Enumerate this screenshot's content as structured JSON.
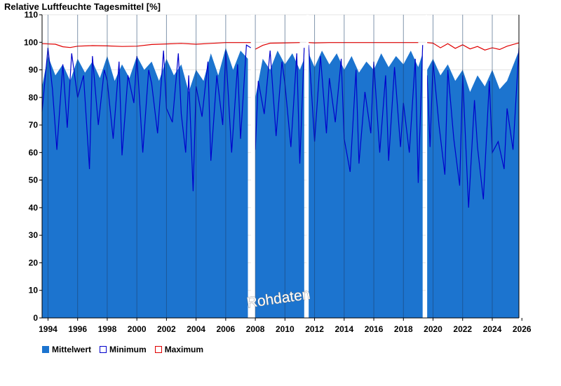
{
  "chart_data": {
    "type": "area",
    "title": "Relative Luftfeuchte Tagesmittel [%]",
    "ylim": [
      0,
      110
    ],
    "yticks": [
      0,
      10,
      20,
      30,
      40,
      50,
      60,
      70,
      80,
      90,
      100,
      110
    ],
    "xlim": [
      1993.6,
      2025.8
    ],
    "xticks": [
      1994,
      1996,
      1998,
      2000,
      2002,
      2004,
      2006,
      2008,
      2010,
      2012,
      2014,
      2016,
      2018,
      2020,
      2022,
      2024,
      2026
    ],
    "xtick_labels": [
      "1994",
      "1996",
      "1998",
      "2000",
      "2002",
      "2004",
      "2006",
      "2008",
      "2010",
      "2012",
      "2014",
      "2016",
      "2018",
      "2020",
      "2022",
      "2024",
      "2026"
    ],
    "gaps": [
      [
        2007.7,
        2008.0
      ],
      [
        2011.45,
        2011.6
      ],
      [
        2019.5,
        2019.6
      ]
    ],
    "annotation": "Rohdaten",
    "grid": true,
    "legend_placement": "bottom-left",
    "series": [
      {
        "name": "Mittelwert",
        "color": "#1c74cf",
        "x": [
          1993.6,
          1994.0,
          1994.5,
          1995.0,
          1995.5,
          1996.0,
          1996.5,
          1997.0,
          1997.5,
          1998.0,
          1998.5,
          1999.0,
          1999.5,
          2000.0,
          2000.5,
          2001.0,
          2001.5,
          2002.0,
          2002.5,
          2003.0,
          2003.5,
          2004.0,
          2004.5,
          2005.0,
          2005.5,
          2006.0,
          2006.5,
          2007.0,
          2007.5,
          2008.0,
          2008.5,
          2009.0,
          2009.5,
          2010.0,
          2010.5,
          2011.0,
          2011.3,
          2011.6,
          2012.0,
          2012.5,
          2013.0,
          2013.5,
          2014.0,
          2014.5,
          2015.0,
          2015.5,
          2016.0,
          2016.5,
          2017.0,
          2017.5,
          2018.0,
          2018.5,
          2019.0,
          2019.3,
          2019.6,
          2020.0,
          2020.5,
          2021.0,
          2021.5,
          2022.0,
          2022.5,
          2023.0,
          2023.5,
          2024.0,
          2024.5,
          2025.0,
          2025.8
        ],
        "y": [
          84,
          95,
          88,
          92,
          86,
          94,
          89,
          93,
          87,
          95,
          86,
          92,
          87,
          95,
          90,
          93,
          86,
          94,
          88,
          92,
          82,
          90,
          86,
          96,
          88,
          98,
          90,
          97,
          94,
          80,
          94,
          90,
          97,
          92,
          96,
          90,
          94,
          96,
          91,
          97,
          92,
          96,
          90,
          95,
          89,
          93,
          90,
          96,
          91,
          95,
          92,
          97,
          91,
          96,
          90,
          94,
          88,
          92,
          86,
          90,
          82,
          88,
          84,
          90,
          83,
          86,
          97
        ]
      },
      {
        "name": "Minimum",
        "color": "#0000cc",
        "x": [
          1993.6,
          1994.0,
          1994.3,
          1994.6,
          1995.0,
          1995.3,
          1995.6,
          1996.0,
          1996.4,
          1996.8,
          1997.0,
          1997.4,
          1997.8,
          1998.0,
          1998.4,
          1998.8,
          1999.0,
          1999.4,
          1999.8,
          2000.0,
          2000.4,
          2000.8,
          2001.0,
          2001.4,
          2001.8,
          2002.0,
          2002.4,
          2002.8,
          2003.0,
          2003.3,
          2003.5,
          2003.8,
          2004.0,
          2004.4,
          2004.8,
          2005.0,
          2005.4,
          2005.8,
          2006.0,
          2006.4,
          2006.8,
          2007.0,
          2007.4,
          2007.7,
          2008.0,
          2008.2,
          2008.6,
          2009.0,
          2009.4,
          2009.8,
          2010.0,
          2010.4,
          2010.8,
          2011.0,
          2011.3,
          2011.6,
          2012.0,
          2012.4,
          2012.8,
          2013.0,
          2013.4,
          2013.8,
          2014.0,
          2014.4,
          2014.8,
          2015.0,
          2015.4,
          2015.8,
          2016.0,
          2016.4,
          2016.8,
          2017.0,
          2017.4,
          2017.8,
          2018.0,
          2018.4,
          2018.8,
          2019.0,
          2019.3,
          2019.6,
          2019.8,
          2020.0,
          2020.4,
          2020.8,
          2021.0,
          2021.4,
          2021.8,
          2022.0,
          2022.4,
          2022.8,
          2023.0,
          2023.4,
          2023.8,
          2024.0,
          2024.4,
          2024.8,
          2025.0,
          2025.4,
          2025.8
        ],
        "y": [
          75,
          98,
          83,
          61,
          92,
          69,
          96,
          80,
          88,
          54,
          95,
          70,
          90,
          86,
          65,
          93,
          59,
          88,
          78,
          95,
          60,
          90,
          85,
          67,
          97,
          76,
          71,
          96,
          74,
          60,
          88,
          46,
          84,
          73,
          93,
          57,
          88,
          70,
          97,
          60,
          92,
          65,
          99,
          98,
          61,
          86,
          74,
          97,
          66,
          93,
          85,
          62,
          96,
          56,
          98,
          99,
          64,
          95,
          67,
          87,
          71,
          94,
          65,
          53,
          90,
          56,
          82,
          67,
          93,
          60,
          88,
          57,
          91,
          62,
          78,
          60,
          94,
          49,
          99,
          88,
          62,
          93,
          70,
          52,
          90,
          65,
          48,
          88,
          40,
          79,
          62,
          43,
          86,
          60,
          64,
          54,
          76,
          61,
          98
        ]
      },
      {
        "name": "Maximum",
        "color": "#e00000",
        "x": [
          1993.6,
          1994.5,
          1995.0,
          1995.5,
          1996.0,
          1997.0,
          1998.0,
          1999.0,
          2000.0,
          2001.0,
          2002.0,
          2003.0,
          2004.0,
          2005.0,
          2006.0,
          2007.0,
          2007.7,
          2008.0,
          2008.5,
          2009.0,
          2010.0,
          2011.0,
          2011.6,
          2012.0,
          2013.0,
          2014.0,
          2015.0,
          2016.0,
          2017.0,
          2018.0,
          2019.0,
          2019.6,
          2020.0,
          2020.5,
          2021.0,
          2021.5,
          2022.0,
          2022.5,
          2023.0,
          2023.5,
          2024.0,
          2024.5,
          2025.0,
          2025.8
        ],
        "y": [
          99.5,
          99.3,
          98.4,
          98.1,
          98.6,
          98.8,
          98.7,
          98.5,
          98.6,
          99.2,
          99.4,
          99.6,
          99.3,
          99.6,
          99.9,
          99.9,
          99.9,
          97.5,
          98.9,
          99.7,
          99.8,
          99.9,
          99.9,
          99.8,
          99.9,
          99.9,
          99.9,
          99.9,
          99.9,
          99.9,
          99.9,
          99.9,
          99.7,
          98.0,
          99.5,
          97.8,
          99.1,
          97.6,
          98.5,
          97.2,
          98.0,
          97.4,
          98.6,
          99.8
        ]
      }
    ]
  }
}
